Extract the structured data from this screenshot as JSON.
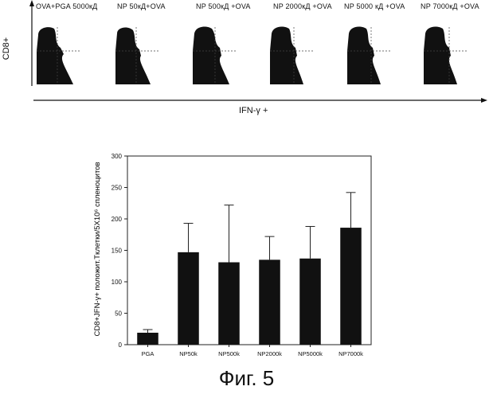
{
  "flow_panel": {
    "labels": [
      "OVA+PGA 5000кД",
      "NP 50кД+OVA",
      "NP 500кД +OVA",
      "NP 2000кД +OVA",
      "NP 5000 кД +OVA",
      "NP 7000кД +OVA"
    ],
    "y_axis_label": "CD8+",
    "x_axis_label": "IFN-γ +"
  },
  "chart_data": {
    "type": "bar",
    "categories": [
      "PGA",
      "NP50k",
      "NP500k",
      "NP2000k",
      "NP5000k",
      "NP7000k"
    ],
    "values": [
      19,
      147,
      131,
      135,
      137,
      186
    ],
    "error_upper": [
      24,
      193,
      222,
      172,
      188,
      242
    ],
    "ylabel": "CD8+JFN-γ+ положит.Tклетки/5X10⁶ спленоцитов",
    "xlabel": "",
    "ylim": [
      0,
      300
    ],
    "yticks": [
      0,
      50,
      100,
      150,
      200,
      250,
      300
    ],
    "bar_color": "#111111"
  },
  "figure_caption": "Фиг. 5"
}
